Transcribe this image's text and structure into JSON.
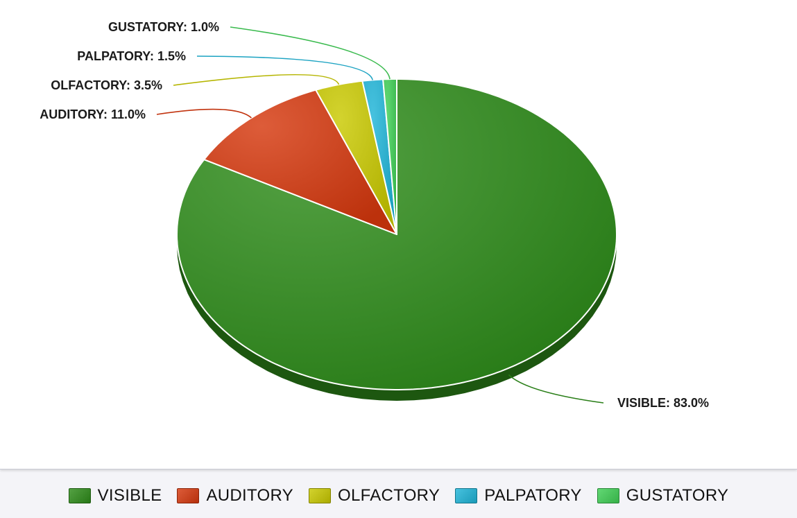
{
  "chart_data": {
    "type": "pie",
    "style": "3d",
    "categories": [
      "VISIBLE",
      "AUDITORY",
      "OLFACTORY",
      "PALPATORY",
      "GUSTATORY"
    ],
    "values": [
      83.0,
      11.0,
      3.5,
      1.5,
      1.0
    ],
    "value_suffix": "%",
    "colors": [
      "#2e8c1a",
      "#d6380e",
      "#c9c900",
      "#1fb5d8",
      "#3fcf55"
    ],
    "slice_labels": [
      "VISIBLE: 83.0%",
      "AUDITORY: 11.0%",
      "OLFACTORY: 3.5%",
      "PALPATORY: 1.5%",
      "GUSTATORY: 1.0%"
    ],
    "legend_position": "bottom",
    "title": ""
  },
  "legend": {
    "items": [
      {
        "label": "VISIBLE",
        "color": "#2e8c1a"
      },
      {
        "label": "AUDITORY",
        "color": "#d6380e"
      },
      {
        "label": "OLFACTORY",
        "color": "#c9c900"
      },
      {
        "label": "PALPATORY",
        "color": "#1fb5d8"
      },
      {
        "label": "GUSTATORY",
        "color": "#3fcf55"
      }
    ]
  }
}
